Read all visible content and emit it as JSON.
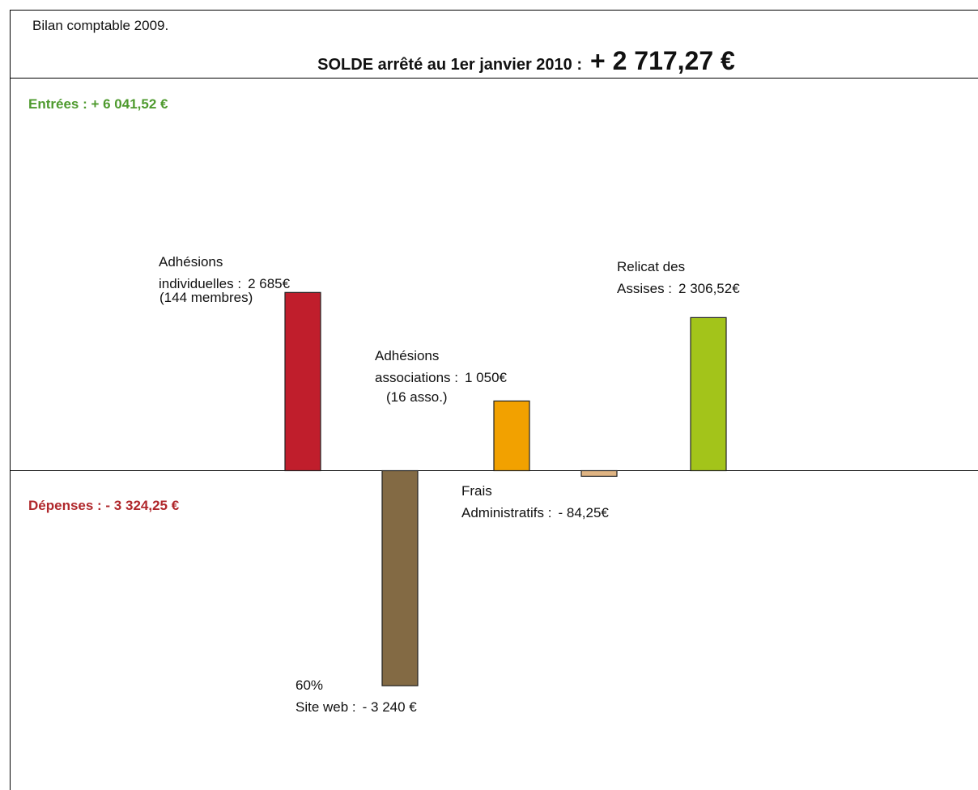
{
  "chart_data": {
    "type": "bar",
    "title": "Bilan comptable 2009.",
    "subtitle": "SOLDE arrêté au 1er janvier 2010 :",
    "balance": "+ 2 717,27 €",
    "income_label": "Entrées : + 6 041,52 €",
    "expense_label": "Dépenses : - 3 324,25 €",
    "categories": [
      [
        "Adhésions",
        "individuelles :"
      ],
      [
        "60%",
        "Site web :"
      ],
      [
        "Adhésions",
        "associations :"
      ],
      [
        "Frais",
        "Administratifs :"
      ],
      [
        "Relicat des",
        "Assises :"
      ]
    ],
    "values": [
      2685,
      -3240,
      1050,
      -84.25,
      2306.52
    ],
    "value_labels": [
      "2 685€",
      "- 3 240 €",
      "1 050€",
      "- 84,25€",
      "2 306,52€"
    ],
    "notes": [
      "(144 membres)",
      null,
      "(16 asso.)",
      null,
      null
    ],
    "colors": [
      "#c01e2c",
      "#836a44",
      "#f2a100",
      "#dfb483",
      "#a3c41a"
    ]
  }
}
